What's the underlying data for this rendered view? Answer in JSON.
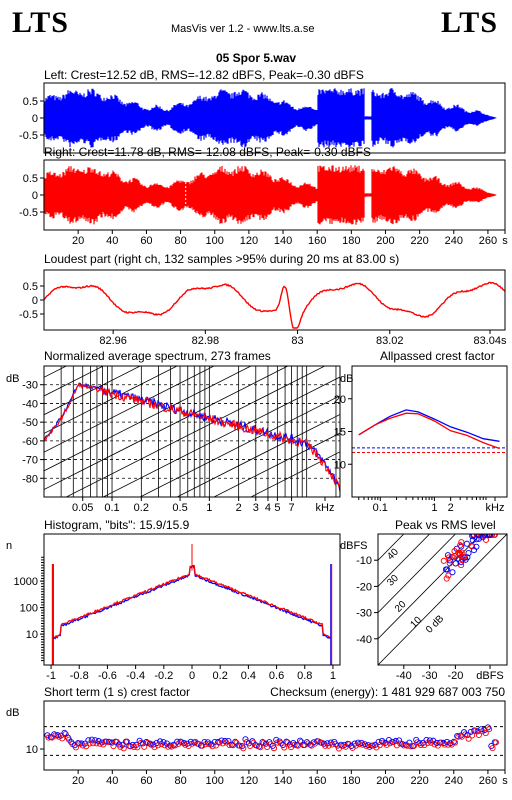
{
  "header": {
    "logo_left": "LTS",
    "logo_right": "LTS",
    "app_title": "MasVis ver 1.2 - www.lts.a.se",
    "file_name": "05 Spor 5.wav"
  },
  "colors": {
    "left": "#0000ff",
    "right": "#ff0000",
    "grid": "#000000"
  },
  "chart_data": [
    {
      "type": "area",
      "title": "Left: Crest=12.52 dB, RMS=-12.82 dBFS, Peak=-0.30 dBFS",
      "channel": "left",
      "yticks": [
        "0.5",
        "0",
        "-0.5"
      ],
      "ylim": [
        -1,
        1
      ],
      "xlim": [
        0,
        270
      ]
    },
    {
      "type": "area",
      "title": "Right: Crest=11.78 dB, RMS=-12.08 dBFS, Peak=-0.30 dBFS",
      "channel": "right",
      "yticks": [
        "0.5",
        "0",
        "-0.5"
      ],
      "ylim": [
        -1,
        1
      ],
      "xlim": [
        0,
        270
      ],
      "xticks": [
        "20",
        "40",
        "60",
        "80",
        "100",
        "120",
        "140",
        "160",
        "180",
        "200",
        "220",
        "240",
        "260",
        "s"
      ]
    },
    {
      "type": "line",
      "title": "Loudest part (right ch, 132 samples >95% during 20 ms at 83.00 s)",
      "yticks": [
        "0.5",
        "0",
        "-0.5"
      ],
      "xticks": [
        "82.96",
        "82.98",
        "83",
        "83.02",
        "83.04s"
      ],
      "xlim": [
        82.945,
        83.045
      ],
      "ylim": [
        -1,
        1
      ]
    },
    {
      "type": "line",
      "title": "Normalized average spectrum, 273 frames",
      "ylabel": "dB",
      "yticks": [
        "-30",
        "-40",
        "-50",
        "-60",
        "-70",
        "-80"
      ],
      "xticks": [
        "0.05",
        "0.1",
        "0.2",
        "0.5",
        "1",
        "2",
        "3",
        "4",
        "5",
        "7",
        "kHz"
      ],
      "xtick_values": [
        0.05,
        0.1,
        0.2,
        0.5,
        1,
        2,
        3,
        4,
        5,
        7
      ],
      "xlim": [
        0.02,
        22
      ],
      "ylim": [
        -90,
        -20
      ]
    },
    {
      "type": "line",
      "title": "Allpassed crest factor",
      "ylabel": "dB",
      "yticks": [
        "20",
        "15",
        "10"
      ],
      "xticks": [
        "0.1",
        "1",
        "2",
        "kHz"
      ],
      "series": [
        {
          "channel": "left",
          "x": [
            0.04,
            0.08,
            0.15,
            0.3,
            0.5,
            1,
            2,
            4,
            8,
            16
          ],
          "values": [
            14.5,
            16.0,
            17.3,
            18.3,
            18.0,
            16.9,
            15.7,
            14.9,
            13.9,
            13.5
          ]
        },
        {
          "channel": "right",
          "x": [
            0.04,
            0.08,
            0.15,
            0.3,
            0.5,
            1,
            2,
            4,
            8,
            16
          ],
          "values": [
            14.5,
            16.0,
            17.0,
            17.8,
            17.7,
            16.6,
            15.1,
            14.4,
            13.3,
            12.4
          ]
        }
      ],
      "hlines": [
        {
          "channel": "left",
          "value": 12.5
        },
        {
          "channel": "right",
          "value": 11.8
        }
      ],
      "ylim": [
        5,
        25
      ]
    },
    {
      "type": "line",
      "title": "Histogram, \"bits\": 15.9/15.9",
      "ylabel": "n",
      "yticks": [
        "1000",
        "100",
        "10"
      ],
      "xticks": [
        "-1",
        "-0.8",
        "-0.6",
        "-0.4",
        "-0.2",
        "0",
        "0.2",
        "0.4",
        "0.6",
        "0.8",
        "1"
      ],
      "xlim": [
        -1.05,
        1.05
      ]
    },
    {
      "type": "scatter",
      "title": "Peak vs RMS level",
      "ylabel": "dBFS",
      "yticks": [
        "-10",
        "-20",
        "-30",
        "-40"
      ],
      "xticks": [
        "-40",
        "-30",
        "-20",
        "dBFS"
      ],
      "diag_labels": [
        "40",
        "30",
        "20",
        "10",
        "0 dB"
      ],
      "xlim": [
        -50,
        0
      ],
      "ylim": [
        -50,
        0
      ]
    },
    {
      "type": "scatter",
      "title": "Short term (1 s) crest factor",
      "checksum": "Checksum (energy):  1 481 929 687 003 750",
      "ylabel": "dB",
      "yticks": [
        "10"
      ],
      "xticks": [
        "20",
        "40",
        "60",
        "80",
        "100",
        "120",
        "140",
        "160",
        "180",
        "200",
        "220",
        "240",
        "260",
        "s"
      ],
      "hlines": [
        {
          "channel": "left",
          "value": 17
        },
        {
          "channel": "right",
          "value": 8
        }
      ],
      "xlim": [
        0,
        270
      ]
    }
  ]
}
